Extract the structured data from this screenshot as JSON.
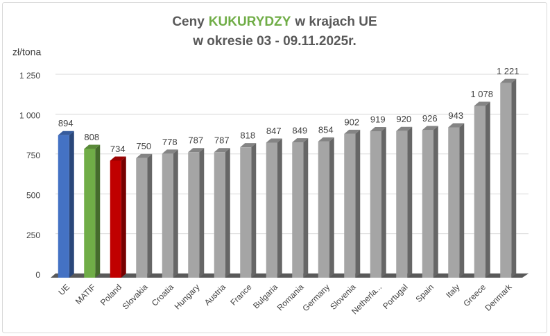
{
  "chart_data": {
    "type": "bar3d",
    "title_parts": [
      "Ceny",
      "KUKURYDZY",
      "w krajach UE"
    ],
    "title_highlight_color": "#70ad47",
    "subtitle": "w okresie 03 - 09.11.2025r.",
    "y_label": "zł/tona",
    "categories": [
      "UE",
      "MATIF",
      "Poland",
      "Slovakia",
      "Croatia",
      "Hungary",
      "Austria",
      "France",
      "Bulgaria",
      "Romania",
      "Germany",
      "Slovenia",
      "Netherla...",
      "Portugal",
      "Spain",
      "Italy",
      "Greece",
      "Denmark"
    ],
    "values": [
      894,
      808,
      734,
      750,
      778,
      787,
      787,
      818,
      847,
      849,
      854,
      902,
      919,
      920,
      926,
      943,
      1078,
      1221
    ],
    "value_labels": [
      "894",
      "808",
      "734",
      "750",
      "778",
      "787",
      "787",
      "818",
      "847",
      "849",
      "854",
      "902",
      "919",
      "920",
      "926",
      "943",
      "1 078",
      "1 221"
    ],
    "colors": [
      "#4472c4",
      "#70ad47",
      "#c00000",
      "#a5a5a5",
      "#a5a5a5",
      "#a5a5a5",
      "#a5a5a5",
      "#a5a5a5",
      "#a5a5a5",
      "#a5a5a5",
      "#a5a5a5",
      "#a5a5a5",
      "#a5a5a5",
      "#a5a5a5",
      "#a5a5a5",
      "#a5a5a5",
      "#a5a5a5",
      "#a5a5a5"
    ],
    "ylim": [
      0,
      1250
    ],
    "yticks": [
      0,
      250,
      500,
      750,
      {
        "value": 1000,
        "label": "1 000"
      },
      {
        "value": 1250,
        "label": "1 250"
      }
    ],
    "grid": true
  }
}
